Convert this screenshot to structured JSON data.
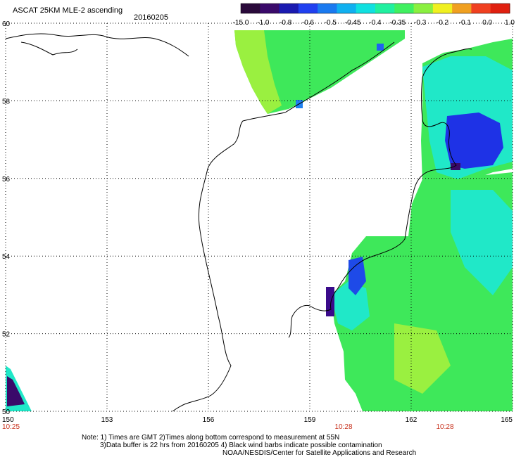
{
  "header": {
    "title": "ASCAT 25KM MLE-2 ascending",
    "date": "20160205"
  },
  "colorbar": {
    "labels": [
      "-15.0",
      "-1.0",
      "-0.8",
      "-0.6",
      "-0.5",
      "-0.45",
      "-0.4",
      "-0.35",
      "-0.3",
      "-0.2",
      "-0.1",
      "0.0",
      "1.0"
    ],
    "colors": [
      "#2a0a3a",
      "#3a0a6a",
      "#1a1ab0",
      "#2040f0",
      "#1a7af0",
      "#10b0f0",
      "#10e0e0",
      "#20f0a0",
      "#40f060",
      "#8af040",
      "#f0f020",
      "#f0a020",
      "#f04020",
      "#e02010"
    ]
  },
  "map": {
    "lat_ticks": [
      "60",
      "58",
      "56",
      "54",
      "52",
      "50"
    ],
    "lon_ticks": [
      "150",
      "153",
      "156",
      "159",
      "162",
      "165"
    ],
    "time_labels": [
      {
        "lon": 150,
        "label": "10:25"
      },
      {
        "lon": 160,
        "label": "10:28"
      },
      {
        "lon": 163,
        "label": "10:28"
      }
    ]
  },
  "footer": {
    "line1": "Note: 1) Times are GMT 2)Times along bottom correspond to measurement at 55N",
    "line2": "3)Data buffer is 22 hrs from 20160205 4) Black wind barbs indicate possible contamination",
    "line3": "NOAA/NESDIS/Center for Satellite Applications and Research"
  }
}
